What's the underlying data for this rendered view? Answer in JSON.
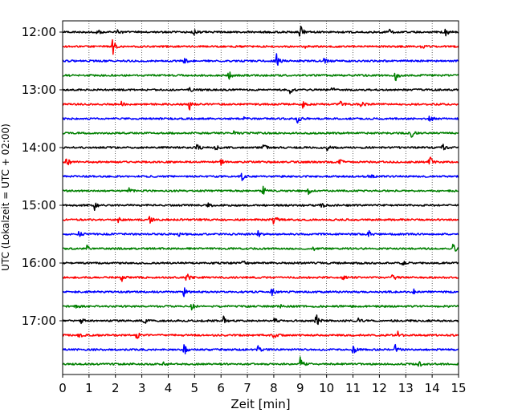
{
  "chart_data": {
    "type": "line",
    "subtype": "helicorder",
    "xlabel": "Zeit  [min]",
    "ylabel": "UTC (Lokalzeit = UTC + 02:00)",
    "xlim": [
      0,
      15
    ],
    "x_ticks": [
      0,
      1,
      2,
      3,
      4,
      5,
      6,
      7,
      8,
      9,
      10,
      11,
      12,
      13,
      14,
      15
    ],
    "x_grid": "vertical dotted",
    "y_tick_labels": [
      "12:00",
      "13:00",
      "14:00",
      "15:00",
      "16:00",
      "17:00"
    ],
    "trace_interval_minutes": 15,
    "trace_colors": [
      "#000000",
      "#ff0000",
      "#0000ff",
      "#008000"
    ],
    "traces": [
      {
        "start": "12:00",
        "color": "#000000",
        "events": [
          {
            "t": 1.3,
            "a": 4
          },
          {
            "t": 2.1,
            "a": 3
          },
          {
            "t": 4.9,
            "a": 9
          },
          {
            "t": 9.0,
            "a": 10
          },
          {
            "t": 12.4,
            "a": 4
          },
          {
            "t": 14.5,
            "a": 6
          }
        ]
      },
      {
        "start": "12:15",
        "color": "#ff0000",
        "events": [
          {
            "t": 1.9,
            "a": 10
          },
          {
            "t": 9.2,
            "a": 3
          },
          {
            "t": 13.6,
            "a": 3
          }
        ]
      },
      {
        "start": "12:30",
        "color": "#0000ff",
        "events": [
          {
            "t": 4.6,
            "a": 5
          },
          {
            "t": 8.1,
            "a": 9
          },
          {
            "t": 9.9,
            "a": 4
          }
        ]
      },
      {
        "start": "12:45",
        "color": "#008000",
        "events": [
          {
            "t": 6.3,
            "a": 5
          },
          {
            "t": 12.6,
            "a": 8
          }
        ]
      },
      {
        "start": "13:00",
        "color": "#000000",
        "events": [
          {
            "t": 4.8,
            "a": 3
          },
          {
            "t": 8.6,
            "a": 5
          },
          {
            "t": 10.2,
            "a": 3
          }
        ]
      },
      {
        "start": "13:15",
        "color": "#ff0000",
        "events": [
          {
            "t": 2.2,
            "a": 4
          },
          {
            "t": 4.8,
            "a": 8
          },
          {
            "t": 9.1,
            "a": 4
          },
          {
            "t": 10.5,
            "a": 5
          },
          {
            "t": 11.3,
            "a": 7
          }
        ]
      },
      {
        "start": "13:30",
        "color": "#0000ff",
        "events": [
          {
            "t": 6.8,
            "a": 3
          },
          {
            "t": 8.9,
            "a": 6
          },
          {
            "t": 13.9,
            "a": 5
          }
        ]
      },
      {
        "start": "13:45",
        "color": "#008000",
        "events": [
          {
            "t": 6.5,
            "a": 3
          },
          {
            "t": 13.2,
            "a": 6
          }
        ]
      },
      {
        "start": "14:00",
        "color": "#000000",
        "events": [
          {
            "t": 5.1,
            "a": 6
          },
          {
            "t": 5.8,
            "a": 4
          },
          {
            "t": 7.6,
            "a": 5
          },
          {
            "t": 10.0,
            "a": 4
          },
          {
            "t": 14.4,
            "a": 4
          }
        ]
      },
      {
        "start": "14:15",
        "color": "#ff0000",
        "events": [
          {
            "t": 0.15,
            "a": 7
          },
          {
            "t": 6.0,
            "a": 3
          },
          {
            "t": 10.5,
            "a": 3
          },
          {
            "t": 13.9,
            "a": 8
          }
        ]
      },
      {
        "start": "14:30",
        "color": "#0000ff",
        "events": [
          {
            "t": 6.8,
            "a": 6
          },
          {
            "t": 11.6,
            "a": 4
          }
        ]
      },
      {
        "start": "14:45",
        "color": "#008000",
        "events": [
          {
            "t": 2.5,
            "a": 4
          },
          {
            "t": 7.6,
            "a": 5
          },
          {
            "t": 9.3,
            "a": 4
          }
        ]
      },
      {
        "start": "15:00",
        "color": "#000000",
        "events": [
          {
            "t": 1.2,
            "a": 6
          },
          {
            "t": 5.5,
            "a": 5
          },
          {
            "t": 9.8,
            "a": 4
          }
        ]
      },
      {
        "start": "15:15",
        "color": "#ff0000",
        "events": [
          {
            "t": 2.1,
            "a": 3
          },
          {
            "t": 3.3,
            "a": 4
          },
          {
            "t": 8.0,
            "a": 7
          }
        ]
      },
      {
        "start": "15:30",
        "color": "#0000ff",
        "events": [
          {
            "t": 0.6,
            "a": 5
          },
          {
            "t": 4.4,
            "a": 3
          },
          {
            "t": 7.4,
            "a": 4
          },
          {
            "t": 11.6,
            "a": 4
          }
        ]
      },
      {
        "start": "15:45",
        "color": "#008000",
        "events": [
          {
            "t": 0.9,
            "a": 5
          },
          {
            "t": 9.5,
            "a": 5
          },
          {
            "t": 14.8,
            "a": 7
          }
        ]
      },
      {
        "start": "16:00",
        "color": "#000000",
        "events": [
          {
            "t": 6.8,
            "a": 5
          },
          {
            "t": 12.9,
            "a": 3
          }
        ]
      },
      {
        "start": "16:15",
        "color": "#ff0000",
        "events": [
          {
            "t": 2.2,
            "a": 8
          },
          {
            "t": 4.7,
            "a": 6
          },
          {
            "t": 10.6,
            "a": 3
          },
          {
            "t": 12.5,
            "a": 5
          }
        ]
      },
      {
        "start": "16:30",
        "color": "#0000ff",
        "events": [
          {
            "t": 4.6,
            "a": 6
          },
          {
            "t": 7.9,
            "a": 7
          },
          {
            "t": 13.3,
            "a": 3
          }
        ]
      },
      {
        "start": "16:45",
        "color": "#008000",
        "events": [
          {
            "t": 0.5,
            "a": 4
          },
          {
            "t": 4.9,
            "a": 5
          },
          {
            "t": 8.2,
            "a": 3
          }
        ]
      },
      {
        "start": "17:00",
        "color": "#000000",
        "events": [
          {
            "t": 0.7,
            "a": 4
          },
          {
            "t": 3.1,
            "a": 4
          },
          {
            "t": 6.1,
            "a": 8
          },
          {
            "t": 8.0,
            "a": 4
          },
          {
            "t": 9.6,
            "a": 9
          },
          {
            "t": 11.2,
            "a": 3
          }
        ]
      },
      {
        "start": "17:15",
        "color": "#ff0000",
        "events": [
          {
            "t": 0.6,
            "a": 4
          },
          {
            "t": 2.8,
            "a": 5
          },
          {
            "t": 8.0,
            "a": 5
          },
          {
            "t": 12.7,
            "a": 5
          }
        ]
      },
      {
        "start": "17:30",
        "color": "#0000ff",
        "events": [
          {
            "t": 4.6,
            "a": 7
          },
          {
            "t": 7.4,
            "a": 4
          },
          {
            "t": 11.0,
            "a": 6
          },
          {
            "t": 12.6,
            "a": 6
          }
        ]
      },
      {
        "start": "17:45",
        "color": "#008000",
        "events": [
          {
            "t": 3.8,
            "a": 5
          },
          {
            "t": 9.0,
            "a": 9
          },
          {
            "t": 13.5,
            "a": 4
          }
        ]
      }
    ]
  }
}
